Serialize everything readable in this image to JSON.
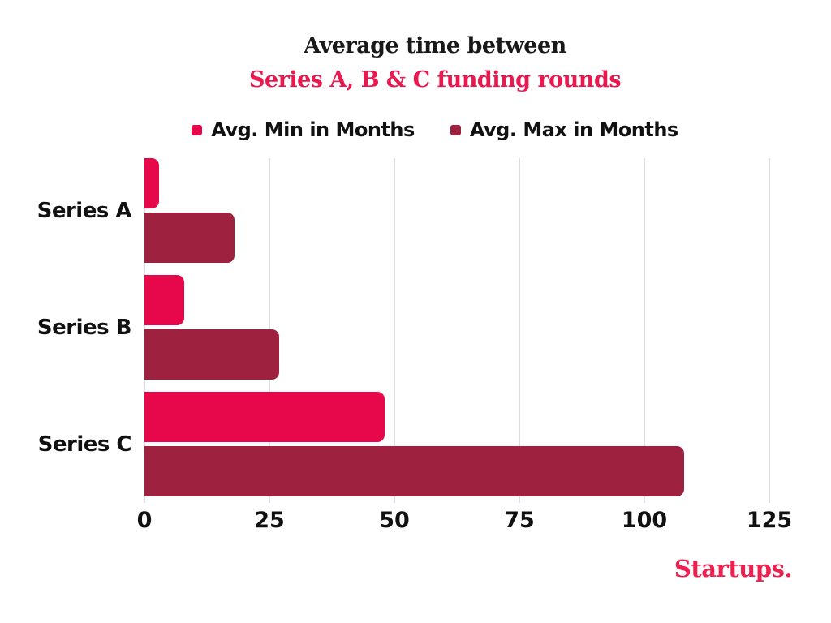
{
  "header": {
    "title_color": "#191919",
    "subtitle_color": "#e9194f"
  },
  "chart_data": {
    "type": "bar",
    "orientation": "horizontal",
    "title": "Average time between",
    "subtitle": "Series A, B & C funding rounds",
    "categories": [
      "Series A",
      "Series B",
      "Series C"
    ],
    "series": [
      {
        "name": "Avg. Min in Months",
        "color": "#e7074b",
        "values": [
          3,
          8,
          48
        ]
      },
      {
        "name": "Avg. Max in Months",
        "color": "#9e2140",
        "values": [
          18,
          27,
          108
        ]
      }
    ],
    "xlabel": "",
    "ylabel": "",
    "xlim": [
      0,
      125
    ],
    "xticks": [
      0,
      25,
      50,
      75,
      100,
      125
    ],
    "grid": true,
    "gridline_color": "#dddddd",
    "legend_position": "top"
  },
  "footer": {
    "logo_text": "Startups.",
    "logo_color": "#ef2050"
  }
}
